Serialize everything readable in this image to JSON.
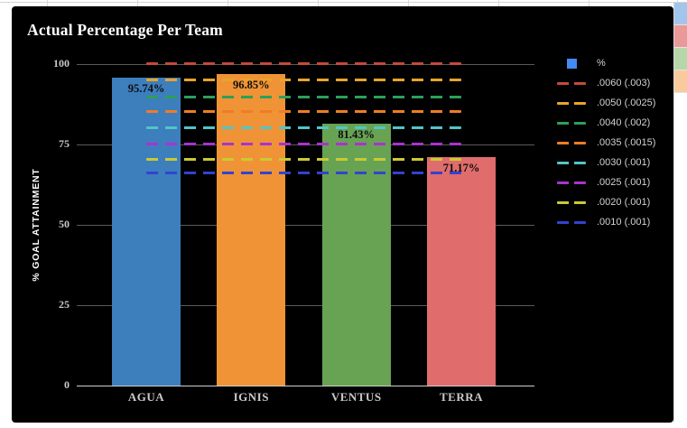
{
  "chart_data": {
    "type": "bar",
    "title": "Actual Percentage Per Team",
    "ylabel": "% GOAL ATTAINMENT",
    "categories": [
      "AGUA",
      "IGNIS",
      "VENTUS",
      "TERRA"
    ],
    "series": [
      {
        "name": "%",
        "values": [
          95.74,
          96.85,
          81.43,
          71.17
        ],
        "data_labels": [
          "95.74%",
          "96.85%",
          "81.43%",
          "71.17%"
        ],
        "bar_colors": [
          "#3d7ebd",
          "#ef9336",
          "#67a353",
          "#e06c6c"
        ]
      }
    ],
    "target_lines": [
      {
        "label": ".0060 (.003)",
        "value": 100.4,
        "color": "#c34a3b"
      },
      {
        "label": ".0050 (.0025)",
        "value": 95.2,
        "color": "#eaa42a"
      },
      {
        "label": ".0040 (.002)",
        "value": 90.0,
        "color": "#2f9e5a"
      },
      {
        "label": ".0035 (.0015)",
        "value": 85.3,
        "color": "#ee7d24"
      },
      {
        "label": ".0030 (.001)",
        "value": 80.3,
        "color": "#52c5c5"
      },
      {
        "label": ".0025 (.001)",
        "value": 75.3,
        "color": "#a834cf"
      },
      {
        "label": ".0020 (.001)",
        "value": 70.4,
        "color": "#c9ca35"
      },
      {
        "label": ".0010 (.001)",
        "value": 66.2,
        "color": "#3243d1"
      }
    ],
    "legend": {
      "series_label": "%",
      "series_swatch_color": "#4489f4",
      "position": "right"
    },
    "yticks": [
      0,
      25,
      50,
      75,
      100
    ],
    "ylim": [
      0,
      100
    ],
    "grid": true,
    "background": "#000000",
    "text_color": "#ffffff"
  },
  "spreadsheet": {
    "right_cells": [
      {
        "name": "team-color-agua",
        "color": "#a2c5ec"
      },
      {
        "name": "team-color-ignis",
        "color": "#ea9999"
      },
      {
        "name": "team-color-ventus",
        "color": "#b6d7a8"
      },
      {
        "name": "team-color-terra",
        "color": "#f9cb9c"
      }
    ]
  }
}
